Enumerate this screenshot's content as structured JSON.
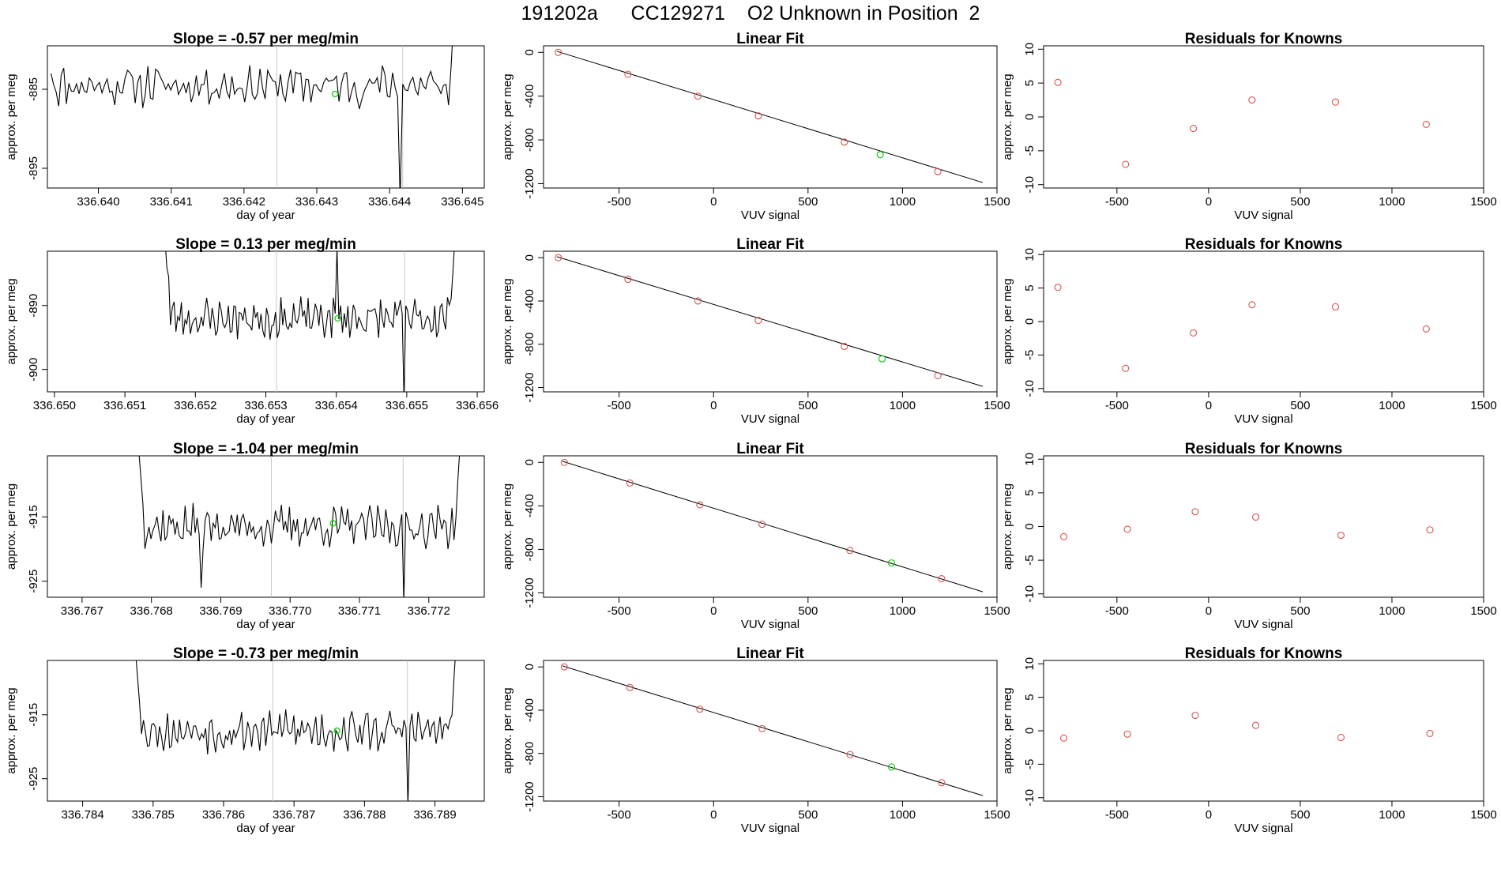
{
  "figure": {
    "title": "191202a      CC129271    O2 Unknown in Position  2",
    "colors": {
      "line": "#000000",
      "knowns": "#d9534f",
      "unknown": "#00cc00",
      "marker": "#c8c8c8",
      "axis": "#000000"
    }
  },
  "chart_data": [
    {
      "row": 1,
      "type": "line",
      "panel": "time-series",
      "title": "Slope =  -0.57  per meg/min",
      "xlabel": "day of year",
      "ylabel": "approx. per meg",
      "xlim": [
        336.6393,
        336.6453
      ],
      "ylim": [
        -897.5,
        -879.5
      ],
      "xticks": [
        "336.640",
        "336.641",
        "336.642",
        "336.643",
        "336.644",
        "336.645"
      ],
      "xtick_values": [
        336.64,
        336.641,
        336.642,
        336.643,
        336.644,
        336.645
      ],
      "yticks": [
        "-885",
        "-895"
      ],
      "ytick_values": [
        -885,
        -895
      ],
      "series_start": 336.63935,
      "series_end": 336.64495,
      "series_level": -884.5,
      "series_amp": 2.0,
      "series_seed": 11,
      "series_start_value": -883.0,
      "series_end_values": [
        -887,
        -882,
        -876,
        -870,
        -862
      ],
      "spikes": [
        {
          "x": 336.64415,
          "y": -899
        }
      ],
      "markers": [
        336.64245,
        336.64418
      ],
      "unknown_point": {
        "x": 336.64325,
        "y": -885.6
      }
    },
    {
      "row": 1,
      "type": "scatter",
      "panel": "linear-fit",
      "title": "Linear Fit",
      "xlabel": "VUV signal",
      "ylabel": "approx. per meg",
      "xlim": [
        -900,
        1500
      ],
      "ylim": [
        -1240,
        60
      ],
      "xticks": [
        "-500",
        "0",
        "500",
        "1000",
        "1500"
      ],
      "xtick_values": [
        -500,
        0,
        500,
        1000,
        1500
      ],
      "yticks": [
        "0",
        "-400",
        "-800",
        "-1200"
      ],
      "ytick_values": [
        0,
        -400,
        -800,
        -1200
      ],
      "fit_line": [
        [
          -830,
          10
        ],
        [
          1425,
          -1190
        ]
      ],
      "knowns": [
        [
          -822,
          0
        ],
        [
          -453,
          -200
        ],
        [
          -83,
          -400
        ],
        [
          237,
          -580
        ],
        [
          692,
          -820
        ],
        [
          1187,
          -1090
        ]
      ],
      "unknown": [
        [
          882,
          -935
        ]
      ]
    },
    {
      "row": 1,
      "type": "scatter",
      "panel": "residuals",
      "title": "Residuals for Knowns",
      "xlabel": "VUV signal",
      "ylabel": "approx. per meg",
      "xlim": [
        -900,
        1500
      ],
      "ylim": [
        -10.5,
        10.5
      ],
      "xticks": [
        "-500",
        "0",
        "500",
        "1000",
        "1500"
      ],
      "xtick_values": [
        -500,
        0,
        500,
        1000,
        1500
      ],
      "yticks": [
        "10",
        "5",
        "0",
        "-5",
        "-10"
      ],
      "ytick_values": [
        10,
        5,
        0,
        -5,
        -10
      ],
      "knowns": [
        [
          -822,
          5.1
        ],
        [
          -453,
          -7.0
        ],
        [
          -83,
          -1.7
        ],
        [
          237,
          2.5
        ],
        [
          692,
          2.2
        ],
        [
          1187,
          -1.1
        ]
      ]
    },
    {
      "row": 2,
      "type": "line",
      "panel": "time-series",
      "title": "Slope =  0.13  per meg/min",
      "xlabel": "day of year",
      "ylabel": "approx. per meg",
      "xlim": [
        336.6499,
        336.6561
      ],
      "ylim": [
        -903.5,
        -881.5
      ],
      "xticks": [
        "336.650",
        "336.651",
        "336.652",
        "336.653",
        "336.654",
        "336.655",
        "336.656"
      ],
      "xtick_values": [
        336.65,
        336.651,
        336.652,
        336.653,
        336.654,
        336.655,
        336.656
      ],
      "yticks": [
        "-890",
        "-900"
      ],
      "ytick_values": [
        -890,
        -900
      ],
      "series_start": 336.65157,
      "series_end": 336.65568,
      "series_level": -892,
      "series_amp": 2.5,
      "series_seed": 23,
      "series_start_values": [
        -880,
        -884,
        -885.5
      ],
      "series_end_values": [
        -889,
        -885,
        -880
      ],
      "spikes": [
        {
          "x": 336.65402,
          "y": -881
        },
        {
          "x": 336.65495,
          "y": -905
        }
      ],
      "markers": [
        336.65315,
        336.65497
      ],
      "unknown_point": {
        "x": 336.65402,
        "y": -892.0
      }
    },
    {
      "row": 2,
      "type": "scatter",
      "panel": "linear-fit",
      "title": "Linear Fit",
      "xlabel": "VUV signal",
      "ylabel": "approx. per meg",
      "xlim": [
        -900,
        1500
      ],
      "ylim": [
        -1240,
        60
      ],
      "xticks": [
        "-500",
        "0",
        "500",
        "1000",
        "1500"
      ],
      "xtick_values": [
        -500,
        0,
        500,
        1000,
        1500
      ],
      "yticks": [
        "0",
        "-400",
        "-800",
        "-1200"
      ],
      "ytick_values": [
        0,
        -400,
        -800,
        -1200
      ],
      "fit_line": [
        [
          -830,
          10
        ],
        [
          1425,
          -1190
        ]
      ],
      "knowns": [
        [
          -822,
          0
        ],
        [
          -453,
          -200
        ],
        [
          -83,
          -400
        ],
        [
          237,
          -580
        ],
        [
          692,
          -820
        ],
        [
          1187,
          -1090
        ]
      ],
      "unknown": [
        [
          892,
          -935
        ]
      ]
    },
    {
      "row": 2,
      "type": "scatter",
      "panel": "residuals",
      "title": "Residuals for Knowns",
      "xlabel": "VUV signal",
      "ylabel": "approx. per meg",
      "xlim": [
        -900,
        1500
      ],
      "ylim": [
        -10.5,
        10.5
      ],
      "xticks": [
        "-500",
        "0",
        "500",
        "1000",
        "1500"
      ],
      "xtick_values": [
        -500,
        0,
        500,
        1000,
        1500
      ],
      "yticks": [
        "10",
        "5",
        "0",
        "-5",
        "-10"
      ],
      "ytick_values": [
        10,
        5,
        0,
        -5,
        -10
      ],
      "knowns": [
        [
          -822,
          5.1
        ],
        [
          -453,
          -7.0
        ],
        [
          -83,
          -1.7
        ],
        [
          237,
          2.5
        ],
        [
          692,
          2.2
        ],
        [
          1187,
          -1.1
        ]
      ]
    },
    {
      "row": 3,
      "type": "line",
      "panel": "time-series",
      "title": "Slope =  -1.04  per meg/min",
      "xlabel": "day of year",
      "ylabel": "approx. per meg",
      "xlim": [
        336.7665,
        336.7728
      ],
      "ylim": [
        -927.5,
        -905.5
      ],
      "xticks": [
        "336.767",
        "336.768",
        "336.769",
        "336.770",
        "336.771",
        "336.772"
      ],
      "xtick_values": [
        336.767,
        336.768,
        336.769,
        336.77,
        336.771,
        336.772
      ],
      "yticks": [
        "-915",
        "-925"
      ],
      "ytick_values": [
        -915,
        -925
      ],
      "series_start": 336.76782,
      "series_end": 336.77245,
      "series_level": -916.5,
      "series_amp": 2.5,
      "series_seed": 37,
      "series_start_values": [
        -905,
        -909,
        -913
      ],
      "series_end_values": [
        -915,
        -909,
        -904
      ],
      "spikes": [
        {
          "x": 336.76873,
          "y": -926
        },
        {
          "x": 336.77163,
          "y": -928
        }
      ],
      "markers": [
        336.76973,
        336.77163
      ],
      "unknown_point": {
        "x": 336.77062,
        "y": -916.0
      }
    },
    {
      "row": 3,
      "type": "scatter",
      "panel": "linear-fit",
      "title": "Linear Fit",
      "xlabel": "VUV signal",
      "ylabel": "approx. per meg",
      "xlim": [
        -900,
        1500
      ],
      "ylim": [
        -1240,
        60
      ],
      "xticks": [
        "-500",
        "0",
        "500",
        "1000",
        "1500"
      ],
      "xtick_values": [
        -500,
        0,
        500,
        1000,
        1500
      ],
      "yticks": [
        "0",
        "-400",
        "-800",
        "-1200"
      ],
      "ytick_values": [
        0,
        -400,
        -800,
        -1200
      ],
      "fit_line": [
        [
          -800,
          10
        ],
        [
          1425,
          -1190
        ]
      ],
      "knowns": [
        [
          -790,
          0
        ],
        [
          -443,
          -190
        ],
        [
          -73,
          -390
        ],
        [
          257,
          -570
        ],
        [
          722,
          -810
        ],
        [
          1207,
          -1070
        ]
      ],
      "unknown": [
        [
          942,
          -925
        ]
      ]
    },
    {
      "row": 3,
      "type": "scatter",
      "panel": "residuals",
      "title": "Residuals for Knowns",
      "xlabel": "VUV signal",
      "ylabel": "approx. per meg",
      "xlim": [
        -900,
        1500
      ],
      "ylim": [
        -10.5,
        10.5
      ],
      "xticks": [
        "-500",
        "0",
        "500",
        "1000",
        "1500"
      ],
      "xtick_values": [
        -500,
        0,
        500,
        1000,
        1500
      ],
      "yticks": [
        "10",
        "5",
        "0",
        "-5",
        "-10"
      ],
      "ytick_values": [
        10,
        5,
        0,
        -5,
        -10
      ],
      "knowns": [
        [
          -790,
          -1.5
        ],
        [
          -443,
          -0.4
        ],
        [
          -73,
          2.2
        ],
        [
          257,
          1.4
        ],
        [
          722,
          -1.3
        ],
        [
          1207,
          -0.5
        ]
      ]
    },
    {
      "row": 4,
      "type": "line",
      "panel": "time-series",
      "title": "Slope =  -0.73  per meg/min",
      "xlabel": "day of year",
      "ylabel": "approx. per meg",
      "xlim": [
        336.7835,
        336.7897
      ],
      "ylim": [
        -928.5,
        -906.5
      ],
      "xticks": [
        "336.784",
        "336.785",
        "336.786",
        "336.787",
        "336.788",
        "336.789"
      ],
      "xtick_values": [
        336.784,
        336.785,
        336.786,
        336.787,
        336.788,
        336.789
      ],
      "yticks": [
        "-915",
        "-925"
      ],
      "ytick_values": [
        -915,
        -925
      ],
      "series_start": 336.78475,
      "series_end": 336.7893,
      "series_level": -917.5,
      "series_amp": 2.5,
      "series_seed": 53,
      "series_start_values": [
        -905,
        -909,
        -913
      ],
      "series_end_values": [
        -915,
        -909,
        -904
      ],
      "spikes": [
        {
          "x": 336.78862,
          "y": -929
        }
      ],
      "markers": [
        336.7867,
        336.78861
      ],
      "unknown_point": {
        "x": 336.78761,
        "y": -917.5
      }
    },
    {
      "row": 4,
      "type": "scatter",
      "panel": "linear-fit",
      "title": "Linear Fit",
      "xlabel": "VUV signal",
      "ylabel": "approx. per meg",
      "xlim": [
        -900,
        1500
      ],
      "ylim": [
        -1240,
        60
      ],
      "xticks": [
        "-500",
        "0",
        "500",
        "1000",
        "1500"
      ],
      "xtick_values": [
        -500,
        0,
        500,
        1000,
        1500
      ],
      "yticks": [
        "0",
        "-400",
        "-800",
        "-1200"
      ],
      "ytick_values": [
        0,
        -400,
        -800,
        -1200
      ],
      "fit_line": [
        [
          -800,
          10
        ],
        [
          1425,
          -1190
        ]
      ],
      "knowns": [
        [
          -790,
          0
        ],
        [
          -443,
          -190
        ],
        [
          -73,
          -390
        ],
        [
          257,
          -570
        ],
        [
          722,
          -810
        ],
        [
          1207,
          -1070
        ]
      ],
      "unknown": [
        [
          942,
          -925
        ]
      ]
    },
    {
      "row": 4,
      "type": "scatter",
      "panel": "residuals",
      "title": "Residuals for Knowns",
      "xlabel": "VUV signal",
      "ylabel": "approx. per meg",
      "xlim": [
        -900,
        1500
      ],
      "ylim": [
        -10.5,
        10.5
      ],
      "xticks": [
        "-500",
        "0",
        "500",
        "1000",
        "1500"
      ],
      "xtick_values": [
        -500,
        0,
        500,
        1000,
        1500
      ],
      "yticks": [
        "10",
        "5",
        "0",
        "-5",
        "-10"
      ],
      "ytick_values": [
        10,
        5,
        0,
        -5,
        -10
      ],
      "knowns": [
        [
          -790,
          -1.1
        ],
        [
          -443,
          -0.5
        ],
        [
          -73,
          2.3
        ],
        [
          257,
          0.8
        ],
        [
          722,
          -1.0
        ],
        [
          1207,
          -0.4
        ]
      ]
    }
  ]
}
